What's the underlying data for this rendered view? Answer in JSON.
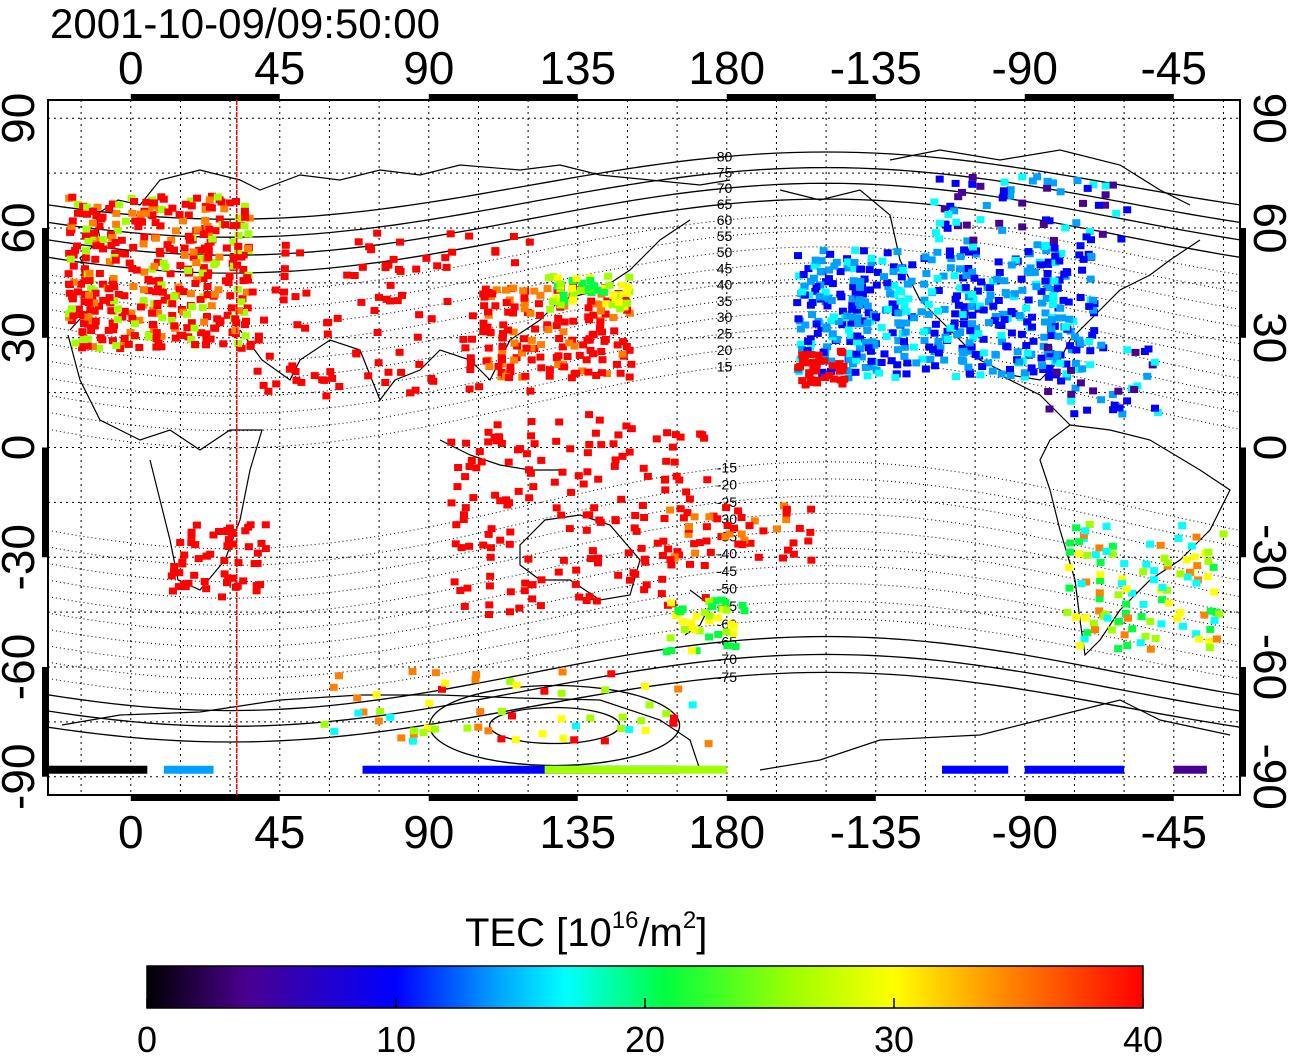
{
  "title": "2001-10-09/09:50:00",
  "map": {
    "top_tick_labels": [
      "0",
      "45",
      "90",
      "135",
      "180",
      "-135",
      "-90",
      "-45"
    ],
    "bottom_tick_labels": [
      "0",
      "45",
      "90",
      "135",
      "180",
      "-135",
      "-90",
      "-45"
    ],
    "left_tick_labels": [
      "90",
      "60",
      "30",
      "0",
      "-30",
      "-60",
      "-90"
    ],
    "right_tick_labels": [
      "90",
      "60",
      "30",
      "0",
      "-30",
      "-60",
      "-90"
    ],
    "lon_range": [
      -25,
      335
    ],
    "lat_range": [
      -95,
      95
    ],
    "marker_longitude": 32,
    "magnetic_contour_labels": [
      "80",
      "75",
      "70",
      "65",
      "60",
      "55",
      "50",
      "45",
      "40",
      "35",
      "30",
      "25",
      "20",
      "15",
      "-15",
      "-20",
      "-25",
      "-30",
      "-35",
      "-40",
      "-45",
      "-50",
      "-55",
      "-60",
      "-65",
      "-70",
      "-75"
    ],
    "grid": "dotted"
  },
  "colorbar": {
    "label": "TEC  [10",
    "label_exp": "16",
    "label_unit": "/m",
    "label_exp2": "2",
    "label_end": "]",
    "ticks": [
      "0",
      "10",
      "20",
      "30",
      "40"
    ],
    "range": [
      0,
      40
    ],
    "colors": [
      "#000000",
      "#4a0090",
      "#0000ff",
      "#00a0ff",
      "#00ffff",
      "#00ff40",
      "#a0ff00",
      "#ffff00",
      "#ff8000",
      "#ff0000"
    ]
  }
}
